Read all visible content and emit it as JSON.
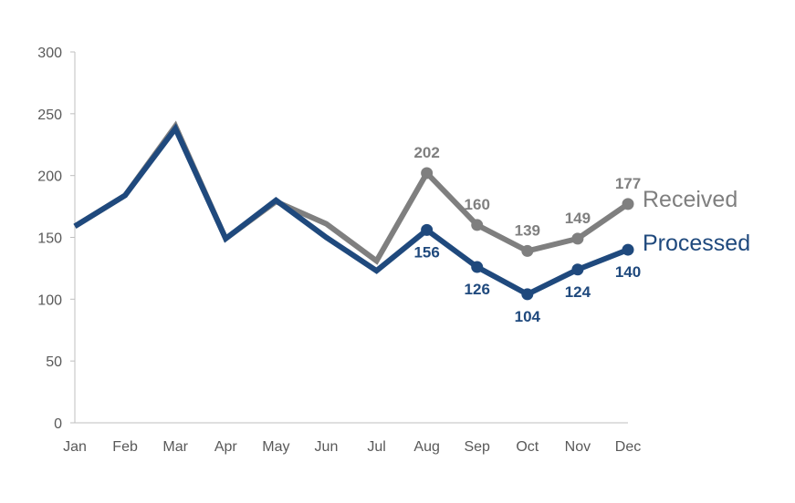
{
  "chart_data": {
    "type": "line",
    "title": "",
    "xlabel": "",
    "ylabel": "",
    "categories": [
      "Jan",
      "Feb",
      "Mar",
      "Apr",
      "May",
      "Jun",
      "Jul",
      "Aug",
      "Sep",
      "Oct",
      "Nov",
      "Dec"
    ],
    "ylim": [
      0,
      300
    ],
    "yticks": [
      0,
      50,
      100,
      150,
      200,
      250,
      300
    ],
    "grid": false,
    "legend": "right, inline at series end",
    "series": [
      {
        "name": "Received",
        "color": "#7f7f7f",
        "values": [
          159,
          184,
          240,
          149,
          179,
          161,
          131,
          202,
          160,
          139,
          149,
          177
        ],
        "labeled_from_index": 7,
        "label_position": "above"
      },
      {
        "name": "Processed",
        "color": "#1f497d",
        "values": [
          159,
          184,
          238,
          149,
          180,
          150,
          123,
          156,
          126,
          104,
          124,
          140
        ],
        "labeled_from_index": 7,
        "label_position": "below"
      }
    ]
  }
}
